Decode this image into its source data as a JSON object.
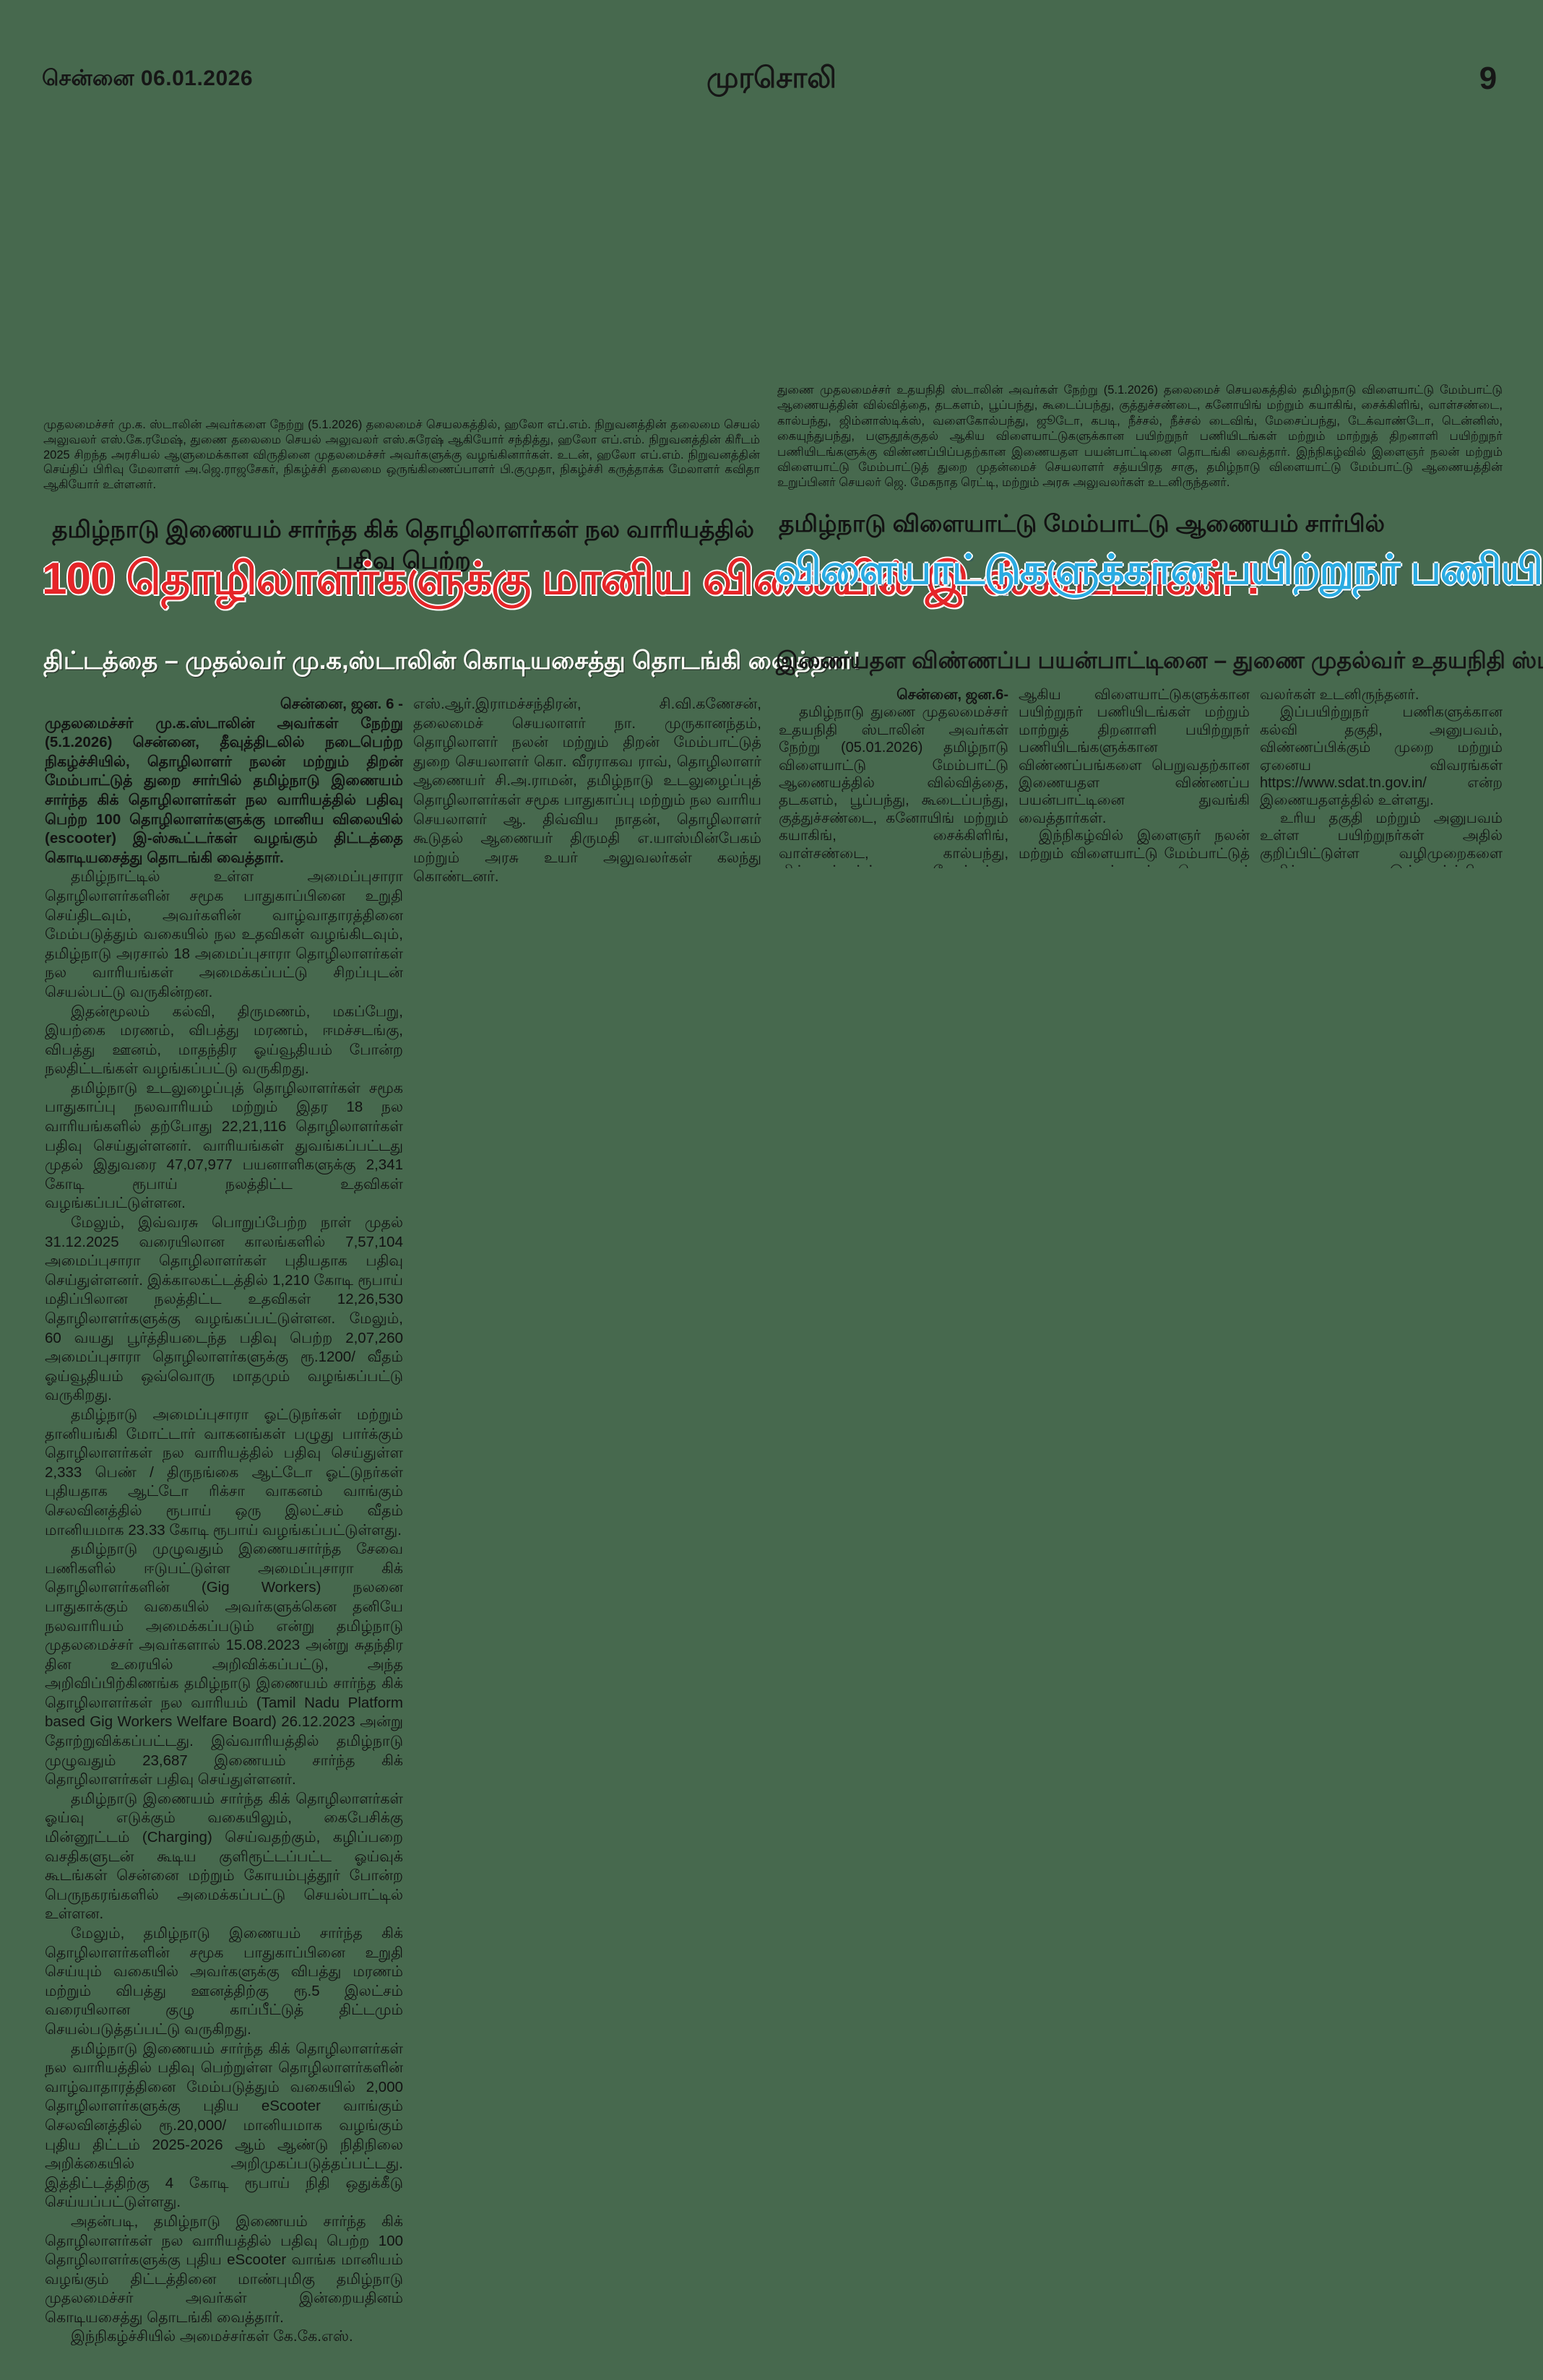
{
  "colors": {
    "background": "#47694e",
    "headline_red": "#e52528",
    "headline_cyan": "#2aabe2",
    "text": "#121212",
    "subhead_knockout": "#fbfbf6"
  },
  "header": {
    "edition": "சென்னை 06.01.2026",
    "masthead": "முரசொலி",
    "page_number": "9"
  },
  "left_photo_caption": "முதலமைச்சர் மு.க. ஸ்டாலின் அவர்களை நேற்று (5.1.2026) தலைமைச் செயலகத்தில், ஹலோ எப்.எம். நிறுவனத்தின் தலைமை செயல் அலுவலர் எஸ்.கே.ரமேஷ், துணை தலைமை செயல் அலுவலர் எஸ்.சுரேஷ் ஆகியோர் சந்தித்து, ஹலோ எப்.எம். நிறுவனத்தின் கிரீடம் 2025  சிறந்த அரசியல் ஆளுமைக்கான விருதினை முதலமைச்சர் அவர்களுக்கு வழங்கினார்கள். உடன், ஹலோ எப்.எம். நிறுவனத்தின் செய்திப் பிரிவு மேலாளர் அ.ஜெ.ராஜசேகர், நிகழ்ச்சி தலைமை ஒருங்கிணைப்பாளர் பி.குமுதா, நிகழ்ச்சி கருத்தாக்க மேலாளர் கவிதா ஆகியோர் உள்ளனர்.",
  "right_photo_caption": "துணை முதலமைச்சர் உதயநிதி ஸ்டாலின் அவர்கள் நேற்று (5.1.2026) தலைமைச் செயலகத்தில் தமிழ்நாடு விளையாட்டு மேம்பாட்டு ஆணையத்தின் வில்வித்தை, தடகளம், பூப்பந்து, கூடைப்பந்து, குத்துச்சண்டை, கனோயிங் மற்றும் கயாகிங், சைக்கிளிங், வாள்சண்டை, கால்பந்து, ஜிம்னாஸ்டிக்ஸ், வளைகோல்பந்து, ஜூடோ, கபடி, நீச்சல், நீச்சல் டைவிங், மேசைப்பந்து, டேக்வாண்டோ, டென்னிஸ், கையுந்துபந்து, பளுதூக்குதல் ஆகிய விளையாட்டுகளுக்கான பயிற்றுநர் பணியிடங்கள் மற்றும் மாற்றுத் திறனாளி பயிற்றுநர் பணியிடங்களுக்கு விண்ணப்பிப்பதற்கான இணையதள பயன்பாட்டினை தொடங்கி வைத்தார். இந்நிகழ்வில் இளைஞர் நலன் மற்றும் விளையாட்டு மேம்பாட்டுத் துறை முதன்மைச் செயலாளர் சத்யபிரத சாகு, தமிழ்நாடு விளையாட்டு மேம்பாட்டு ஆணையத்தின் உறுப்பினர் செயலர் ஜெ. மேகநாத ரெட்டி, மற்றும் அரசு அலுவலர்கள் உடனிருந்தனர்.",
  "left_article": {
    "kicker": "தமிழ்நாடு இணையம் சார்ந்த கிக் தொழிலாளர்கள் நல வாரியத்தில் பதிவு பெற்ற",
    "headline": "100 தொழிலாளர்களுக்கு மானிய விலையில் இ-ஸ்கூட்டர்கள் !",
    "subheadline": "திட்டத்தை – முதல்வர் மு.க,ஸ்டாலின்  கொடியசைத்து தொடங்கி வைத்தார்!",
    "dateline": "சென்னை, ஜன. 6 -",
    "lead_paragraph": "முதலமைச்சர் மு.க.ஸ்டாலின் அவர்கள் நேற்று (5.1.2026) சென்னை, தீவுத்திடலில் நடைபெற்ற நிகழ்ச்சியில், தொழிலாளர் நலன் மற்றும் திறன் மேம்பாட்டுத் துறை சார்பில் தமிழ்நாடு இணையம் சார்ந்த கிக் தொழிலாளர்கள் நல வாரியத்தில் பதிவு பெற்ற 100 தொழிலாளர்களுக்கு மானிய விலையில் (escooter) இ-ஸ்கூட்டர்கள் வழங்கும் திட்டத்தை கொடியசைத்து தொடங்கி வைத்தார்.",
    "column2_continuation": "எஸ்.ஆர்.இராமச்சந்திரன், சி.வி.கணேசன், தலைமைச் செயலாளர் நா. முருகானந்தம், தொழிலாளர் நலன் மற்றும் திறன் மேம்பாட்டுத் துறை செயலாளர் கொ. வீரராகவ ராவ், தொழிலாளர் ஆணையர் சி.அ.ராமன், தமிழ்நாடு உடலுழைப்புத் தொழிலாளர்கள் சமூக பாதுகாப்பு மற்றும் நல வாரிய செயலாளர் ஆ. திவ்விய நாதன், தொழிலாளர் கூடுதல் ஆணையர் திருமதி எ.யாஸ்மின்பேகம் மற்றும் அரசு உயர் அலுவலர்கள் கலந்து கொண்டனர்.",
    "paragraphs": [
      "தமிழ்நாட்டில் உள்ள அமைப்புசாரா தொழிலாளர்களின் சமூக பாதுகாப்பினை உறுதி செய்திடவும், அவர்களின் வாழ்வாதாரத்தினை மேம்படுத்தும் வகையில் நல உதவிகள் வழங்கிடவும், தமிழ்நாடு அரசால் 18 அமைப்புசாரா தொழிலாளர்கள் நல வாரியங்கள் அமைக்கப்பட்டு சிறப்புடன் செயல்பட்டு வருகின்றன.",
      "இதன்மூலம் கல்வி, திருமணம், மகப்பேறு, இயற்கை மரணம், விபத்து மரணம், ஈமச்சடங்கு, விபத்து ஊனம், மாதந்திர ஓய்வூதியம் போன்ற நலதிட்டங்கள் வழங்கப்பட்டு வருகிறது.",
      "தமிழ்நாடு உடலுழைப்புத் தொழிலாளர்கள் சமூக பாதுகாப்பு நலவாரியம் மற்றும் இதர 18 நல வாரியங்களில் தற்போது 22,21,116 தொழிலாளர்கள் பதிவு செய்துள்ளனர். வாரியங்கள் துவங்கப்பட்டது முதல் இதுவரை 47,07,977 பயனாளிகளுக்கு 2,341 கோடி ரூபாய் நலத்திட்ட உதவிகள் வழங்கப்பட்டுள்ளன.",
      "மேலும், இவ்வரசு பொறுப்பேற்ற நாள் முதல் 31.12.2025 வரையிலான காலங்களில் 7,57,104 அமைப்புசாரா தொழிலாளர்கள் புதியதாக பதிவு செய்துள்ளனர். இக்காலகட்டத்தில் 1,210 கோடி ரூபாய் மதிப்பிலான நலத்திட்ட உதவிகள் 12,26,530 தொழிலாளர்களுக்கு வழங்கப்பட்டுள்ளன. மேலும், 60 வயது பூர்த்தியடைந்த பதிவு பெற்ற 2,07,260 அமைப்புசாரா தொழிலாளர்களுக்கு ரூ.1200/ வீதம் ஓய்வூதியம் ஒவ்வொரு மாதமும் வழங்கப்பட்டு வருகிறது.",
      "தமிழ்நாடு அமைப்புசாரா ஓட்டுநர்கள் மற்றும் தானியங்கி மோட்டார் வாகனங்கள் பழுது பார்க்கும் தொழிலாளர்கள் நல வாரியத்தில் பதிவு செய்துள்ள 2,333 பெண் / திருநங்கை ஆட்டோ ஓட்டுநர்கள் புதியதாக ஆட்டோ ரிக்சா வாகனம் வாங்கும் செலவினத்தில் ரூபாய் ஒரு இலட்சம் வீதம் மானியமாக 23.33 கோடி ரூபாய் வழங்கப்பட்டுள்ளது.",
      "தமிழ்நாடு முழுவதும் இணையசார்ந்த சேவை பணிகளில் ஈடுபட்டுள்ள அமைப்புசாரா கிக் தொழிலாளர்களின் (Gig Workers) நலனை பாதுகாக்கும் வகையில் அவர்களுக்கென தனியே நலவாரியம் அமைக்கப்படும் என்று தமிழ்நாடு முதலமைச்சர் அவர்களால் 15.08.2023 அன்று சுதந்திர தின உரையில் அறிவிக்கப்பட்டு, அந்த அறிவிப்பிற்கிணங்க தமிழ்நாடு இணையம் சார்ந்த கிக் தொழிலாளர்கள் நல வாரியம் (Tamil Nadu Platform based Gig Workers Welfare Board) 26.12.2023 அன்று தோற்றுவிக்கப்பட்டது. இவ்வாரியத்தில் தமிழ்நாடு முழுவதும் 23,687 இணையம் சார்ந்த கிக் தொழிலாளர்கள் பதிவு செய்துள்ளனர்.",
      "தமிழ்நாடு இணையம் சார்ந்த கிக் தொழிலாளர்கள் ஓய்வு எடுக்கும் வகையிலும், கைபேசிக்கு மின்னூட்டம் (Charging) செய்வதற்கும், கழிப்பறை வசதிகளுடன் கூடிய குளிரூட்டப்பட்ட ஓய்வுக் கூடங்கள் சென்னை மற்றும் கோயம்புத்தூர் போன்ற பெருநகரங்களில் அமைக்கப்பட்டு செயல்பாட்டில் உள்ளன.",
      "மேலும், தமிழ்நாடு இணையம் சார்ந்த கிக் தொழிலாளர்களின் சமூக பாதுகாப்பினை உறுதி செய்யும் வகையில் அவர்களுக்கு விபத்து மரணம் மற்றும் விபத்து ஊனத்திற்கு ரூ.5 இலட்சம் வரையிலான குழு காப்பீட்டுத் திட்டமும் செயல்படுத்தப்பட்டு வருகிறது.",
      "தமிழ்நாடு இணையம் சார்ந்த கிக் தொழிலாளர்கள் நல வாரியத்தில் பதிவு பெற்றுள்ள தொழிலாளர்களின் வாழ்வாதாரத்தினை மேம்படுத்தும் வகையில் 2,000 தொழிலாளர்களுக்கு புதிய eScooter வாங்கும் செலவினத்தில் ரூ.20,000/ மானியமாக வழங்கும் புதிய திட்டம் 2025-2026 ஆம் ஆண்டு நிதிநிலை அறிக்கையில் அறிமுகப்படுத்தப்பட்டது. இத்திட்டத்திற்கு 4 கோடி ரூபாய் நிதி ஒதுக்கீடு செய்யப்பட்டுள்ளது.",
      "அதன்படி, தமிழ்நாடு இணையம் சார்ந்த கிக் தொழிலாளர்கள் நல வாரியத்தில் பதிவு பெற்ற 100 தொழிலாளர்களுக்கு புதிய eScooter வாங்க மானியம் வழங்கும் திட்டத்தினை மாண்புமிகு தமிழ்நாடு முதலமைச்சர் அவர்கள் இன்றையதினம் கொடியசைத்து தொடங்கி வைத்தார்.",
      "இந்நிகழ்ச்சியில் அமைச்சர்கள் கே.கே.எஸ்."
    ]
  },
  "right_article": {
    "kicker": "தமிழ்நாடு விளையாட்டு மேம்பாட்டு ஆணையம் சார்பில்",
    "headline": "விளையாட்டுகளுக்கான பயிற்றுநர் பணியிடங்களுக்கான விண்ணப்பங்கள்!",
    "subheadline": "இணையதள விண்ணப்ப பயன்பாட்டினை – துணை முதல்வர் உதயநிதி ஸ்டாலின் துவக்கி வைத்தார்!",
    "dateline": "சென்னை, ஜன.6-",
    "column1_text": "தமிழ்நாடு துணை முதலமைச்சர் உதயநிதி ஸ்டாலின் அவர்கள் நேற்று (05.01.2026) தமிழ்நாடு விளையாட்டு மேம்பாட்டு ஆணையத்தில் வில்வித்தை, தடகளம், பூப்பந்து, கூடைப்பந்து, குத்துச்சண்டை, கனோயிங் மற்றும் கயாகிங், சைக்கிளிங், வாள்சண்டை, கால்பந்து, ஜிம்னாஸ்டிக்ஸ், வளைகோல்பந்து, ஜூடோ, கபடி, நீச்சல், நீச்சல் டைவிங், மேசைப்பந்து, டேக்வாண்டோ, டென்னிஸ், கையுந்துபந்து, பளுதூக்குதல்",
    "column2_paragraphs": [
      "ஆகிய விளையாட்டுகளுக்கான பயிற்றுநர் பணியிடங்கள் மற்றும் மாற்றுத் திறனாளி பயிற்றுநர் பணியிடங்களுக்கான விண்ணப்பங்களை பெறுவதற்கான இணையதள விண்ணப்ப பயன்பாட்டினை துவங்கி வைத்தார்கள்.",
      "இந்நிகழ்வில் இளைஞர் நலன் மற்றும் விளையாட்டு மேம்பாட்டுத் துறை முதன்மைச் செயலாளர் சத்யபிரத சாகு, தமிழ்நாடு விளையாட்டு மேம்பாட்டு ஆணையத்தின் உறுப்பினர் செயலர் ஜெ. மேகநாத ரெட்டி மற்றும் அரசு அலு"
    ],
    "column3_paragraphs": [
      "வலர்கள் உடனிருந்தனர்.",
      "இப்பயிற்றுநர் பணிகளுக்கான கல்வி தகுதி, அனுபவம், விண்ணப்பிக்கும் முறை மற்றும் ஏனைய விவரங்கள் https://www.sdat.tn.gov.in/ என்ற இணையதளத்தில் உள்ளது.",
      "உரிய தகுதி மற்றும் அனுபவம் உள்ள பயிற்றுநர்கள் அதில் குறிப்பிட்டுள்ள வழிமுறைகளை அறிந்து இவ்வாய்ப்பினை பயன்படுத்திக் கொள்ளுமாறு கேட்டுக் கொள்ளப்படுகிறார்கள்."
    ]
  }
}
